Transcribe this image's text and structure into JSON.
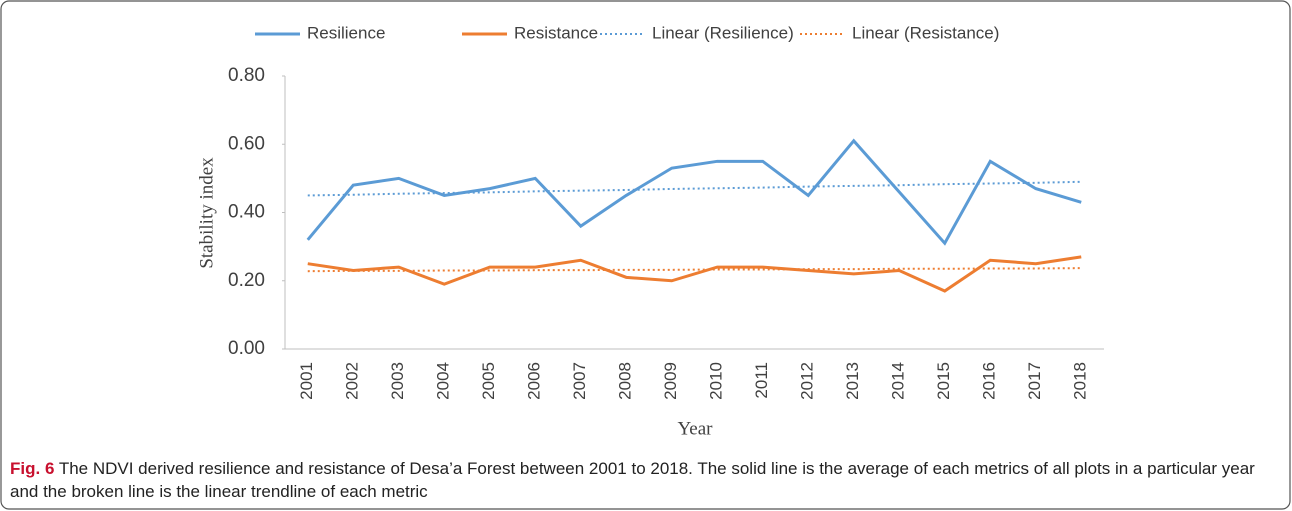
{
  "chart_data": {
    "type": "line",
    "categories": [
      "2001",
      "2002",
      "2003",
      "2004",
      "2005",
      "2006",
      "2007",
      "2008",
      "2009",
      "2010",
      "2011",
      "2012",
      "2013",
      "2014",
      "2015",
      "2016",
      "2017",
      "2018"
    ],
    "series": [
      {
        "name": "Resilience",
        "color": "#5b9bd5",
        "style": "solid",
        "values": [
          0.32,
          0.48,
          0.5,
          0.45,
          0.47,
          0.5,
          0.36,
          0.45,
          0.53,
          0.55,
          0.55,
          0.45,
          0.61,
          0.46,
          0.31,
          0.55,
          0.47,
          0.43
        ]
      },
      {
        "name": "Resistance",
        "color": "#ed7d31",
        "style": "solid",
        "values": [
          0.25,
          0.23,
          0.24,
          0.19,
          0.24,
          0.24,
          0.26,
          0.21,
          0.2,
          0.24,
          0.24,
          0.23,
          0.22,
          0.23,
          0.17,
          0.26,
          0.25,
          0.27
        ]
      },
      {
        "name": "Linear (Resilience)",
        "color": "#5b9bd5",
        "style": "dotted",
        "values": [
          0.45,
          0.452,
          0.455,
          0.457,
          0.459,
          0.462,
          0.464,
          0.466,
          0.469,
          0.471,
          0.473,
          0.476,
          0.478,
          0.48,
          0.483,
          0.485,
          0.487,
          0.49
        ]
      },
      {
        "name": "Linear (Resistance)",
        "color": "#ed7d31",
        "style": "dotted",
        "values": [
          0.228,
          0.229,
          0.229,
          0.23,
          0.23,
          0.231,
          0.231,
          0.232,
          0.232,
          0.233,
          0.233,
          0.234,
          0.234,
          0.235,
          0.235,
          0.236,
          0.236,
          0.237
        ]
      }
    ],
    "ylim": [
      0,
      0.8
    ],
    "yticks": [
      {
        "value": 0,
        "label": "0.00"
      },
      {
        "value": 0.2,
        "label": "0.20"
      },
      {
        "value": 0.4,
        "label": "0.40"
      },
      {
        "value": 0.6,
        "label": "0.60"
      },
      {
        "value": 0.8,
        "label": "0.80"
      }
    ],
    "y_label": "Stability index",
    "x_label": "Year",
    "legend": "top",
    "caption_label": "Fig. 6",
    "caption": "The NDVI derived resilience and resistance of Desa’a Forest between 2001 to 2018. The solid line is the average of each metrics of all plots in a particular year and the broken line is the linear trendline of each metric"
  }
}
